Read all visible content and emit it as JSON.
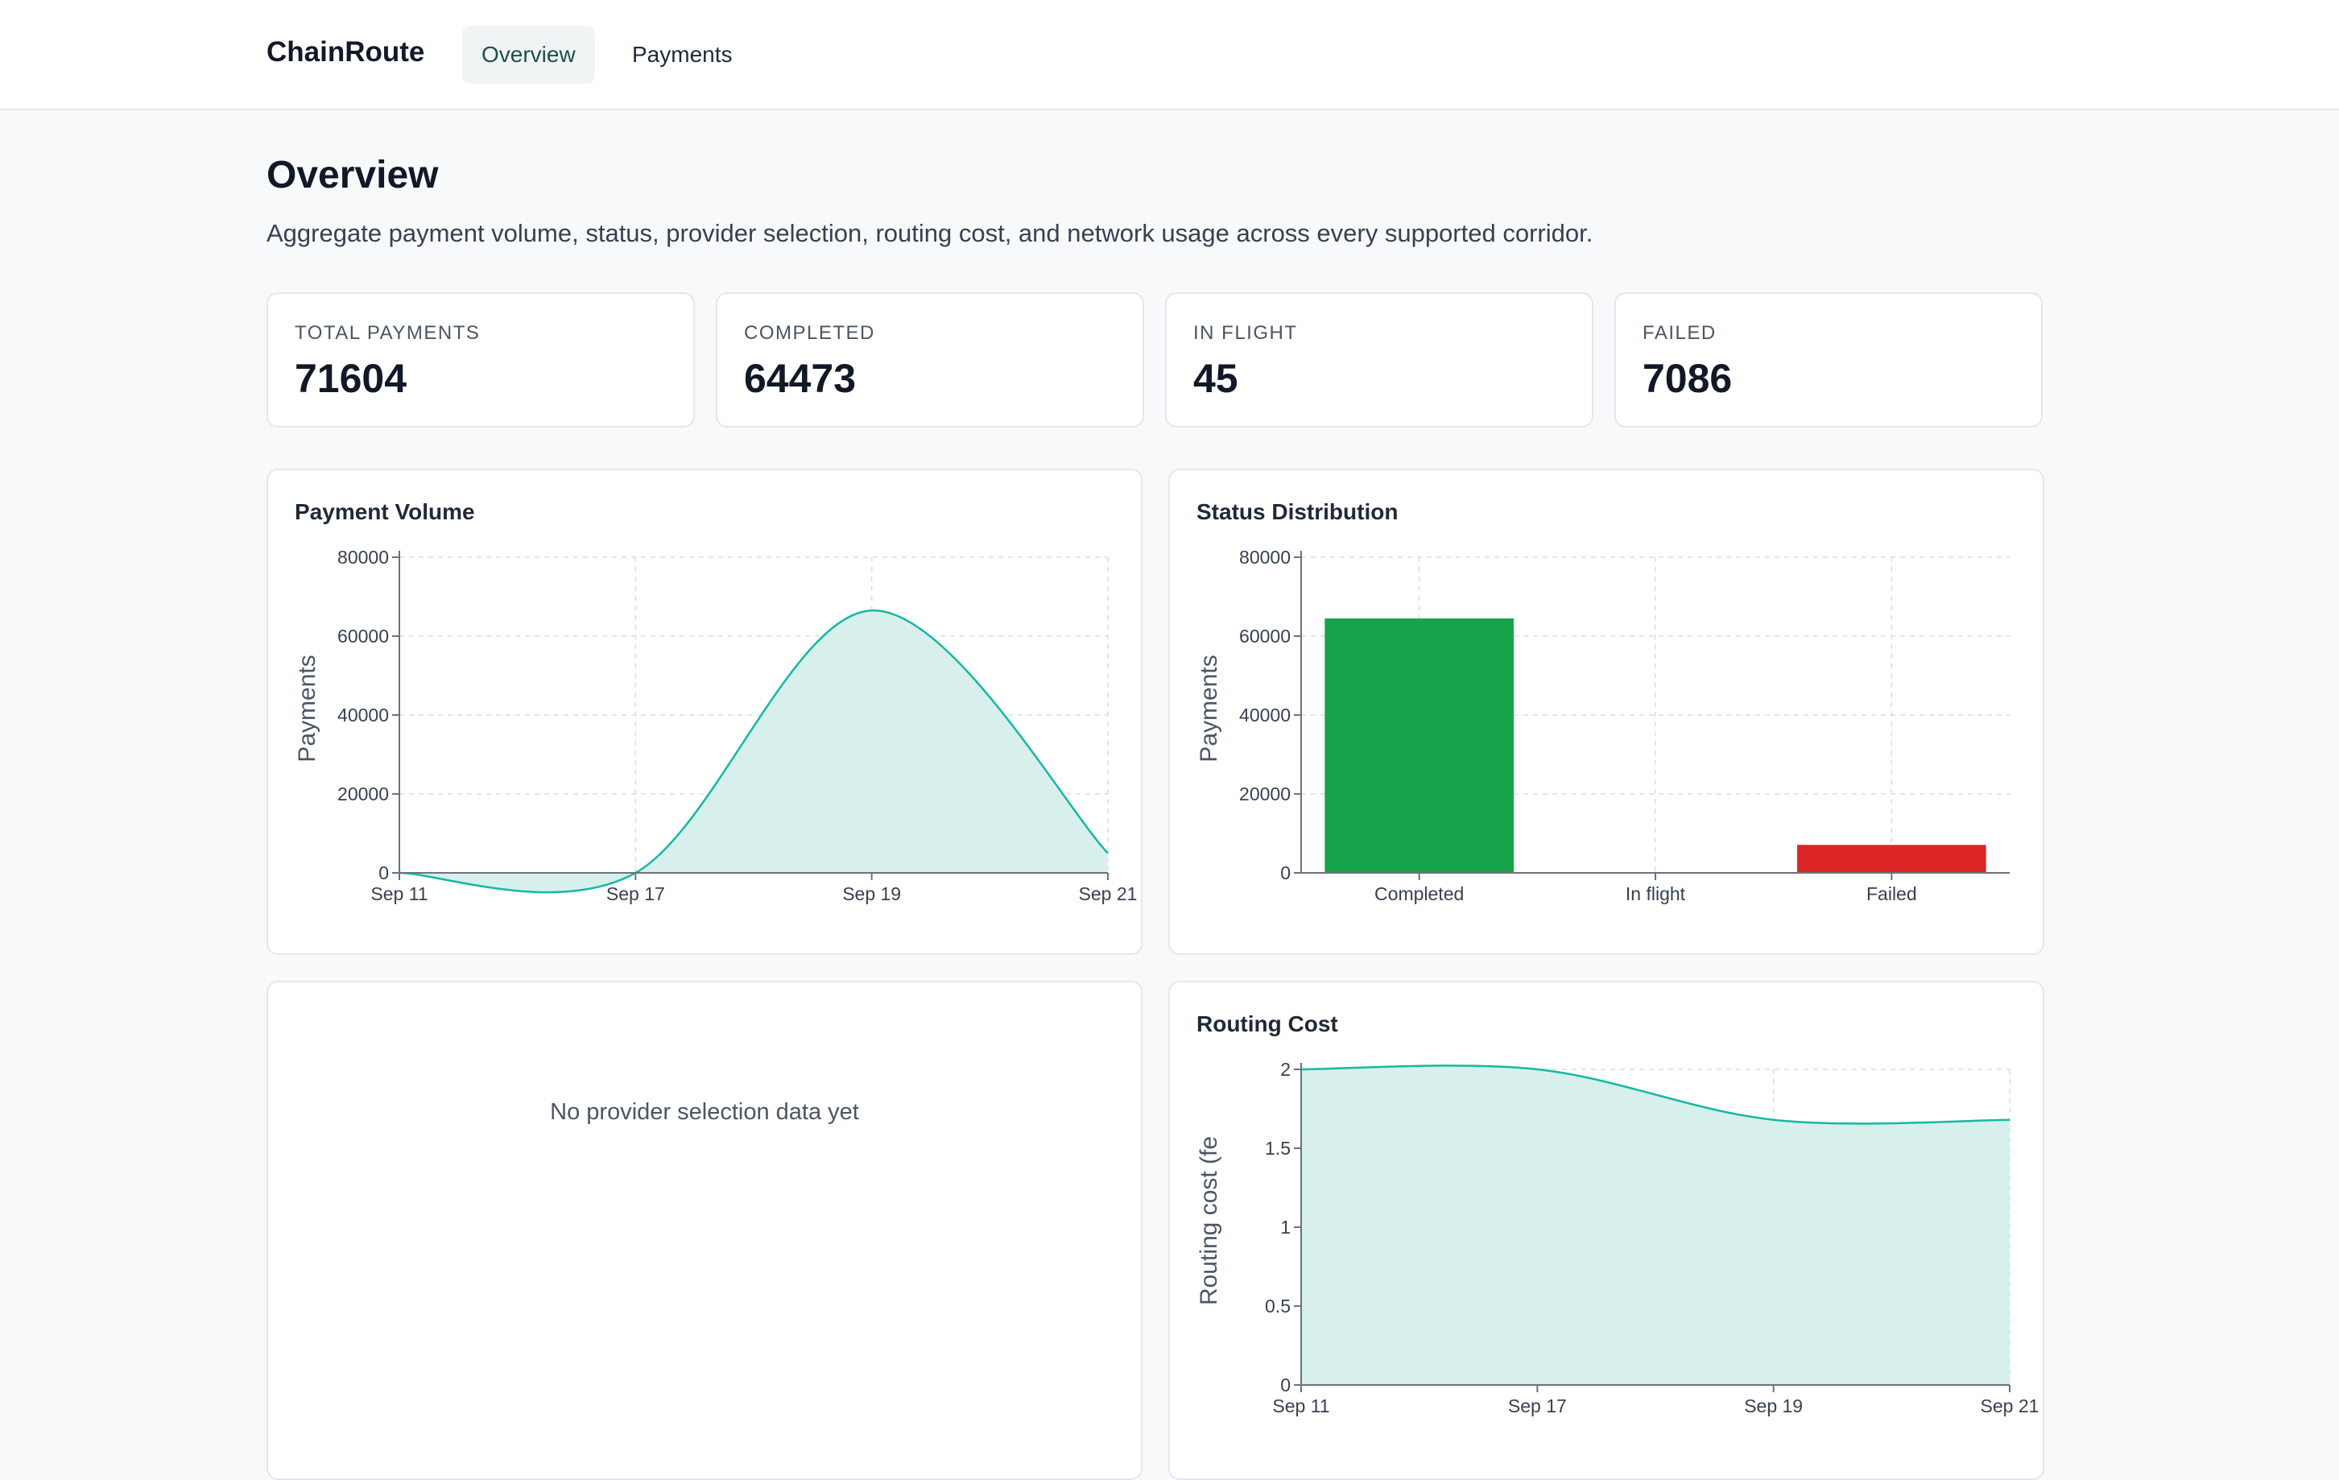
{
  "app": {
    "brand": "ChainRoute"
  },
  "nav": {
    "tabs": [
      {
        "label": "Overview",
        "active": true
      },
      {
        "label": "Payments",
        "active": false
      }
    ]
  },
  "page": {
    "title": "Overview",
    "subtitle": "Aggregate payment volume, status, provider selection, routing cost, and network usage across every supported corridor."
  },
  "stats": [
    {
      "label": "TOTAL PAYMENTS",
      "value": "71604"
    },
    {
      "label": "COMPLETED",
      "value": "64473"
    },
    {
      "label": "IN FLIGHT",
      "value": "45"
    },
    {
      "label": "FAILED",
      "value": "7086"
    }
  ],
  "panels": {
    "payment_volume": {
      "title": "Payment Volume"
    },
    "status_distribution": {
      "title": "Status Distribution"
    },
    "provider_selection": {
      "empty_message": "No provider selection data yet"
    },
    "routing_cost": {
      "title": "Routing Cost"
    }
  },
  "colors": {
    "accent": "#14b8a6",
    "area_fill": "#d7f0eb",
    "completed": "#16a34a",
    "failed": "#dc2626"
  },
  "chart_data": [
    {
      "type": "area",
      "title": "Payment Volume",
      "ylabel": "Payments",
      "x": [
        "Sep 11",
        "Sep 17",
        "Sep 19",
        "Sep 21"
      ],
      "series": [
        {
          "values": [
            0,
            0,
            66500,
            5000
          ]
        }
      ],
      "ylim": [
        0,
        80000
      ],
      "yticks": [
        "0",
        "20000",
        "40000",
        "60000",
        "80000"
      ],
      "grid": true
    },
    {
      "type": "bar",
      "title": "Status Distribution",
      "ylabel": "Payments",
      "categories": [
        "Completed",
        "In flight",
        "Failed"
      ],
      "values": [
        64473,
        45,
        7086
      ],
      "ylim": [
        0,
        80000
      ],
      "yticks": [
        "0",
        "20000",
        "40000",
        "60000",
        "80000"
      ],
      "grid": true
    },
    {
      "type": "area",
      "title": "Routing Cost",
      "ylabel": "Routing cost (fe",
      "x": [
        "Sep 11",
        "Sep 17",
        "Sep 19",
        "Sep 21"
      ],
      "series": [
        {
          "values": [
            2,
            2,
            1.68,
            1.68
          ]
        }
      ],
      "ylim": [
        0,
        2
      ],
      "yticks": [
        "0",
        "0.5",
        "1",
        "1.5",
        "2"
      ],
      "grid": true
    }
  ]
}
